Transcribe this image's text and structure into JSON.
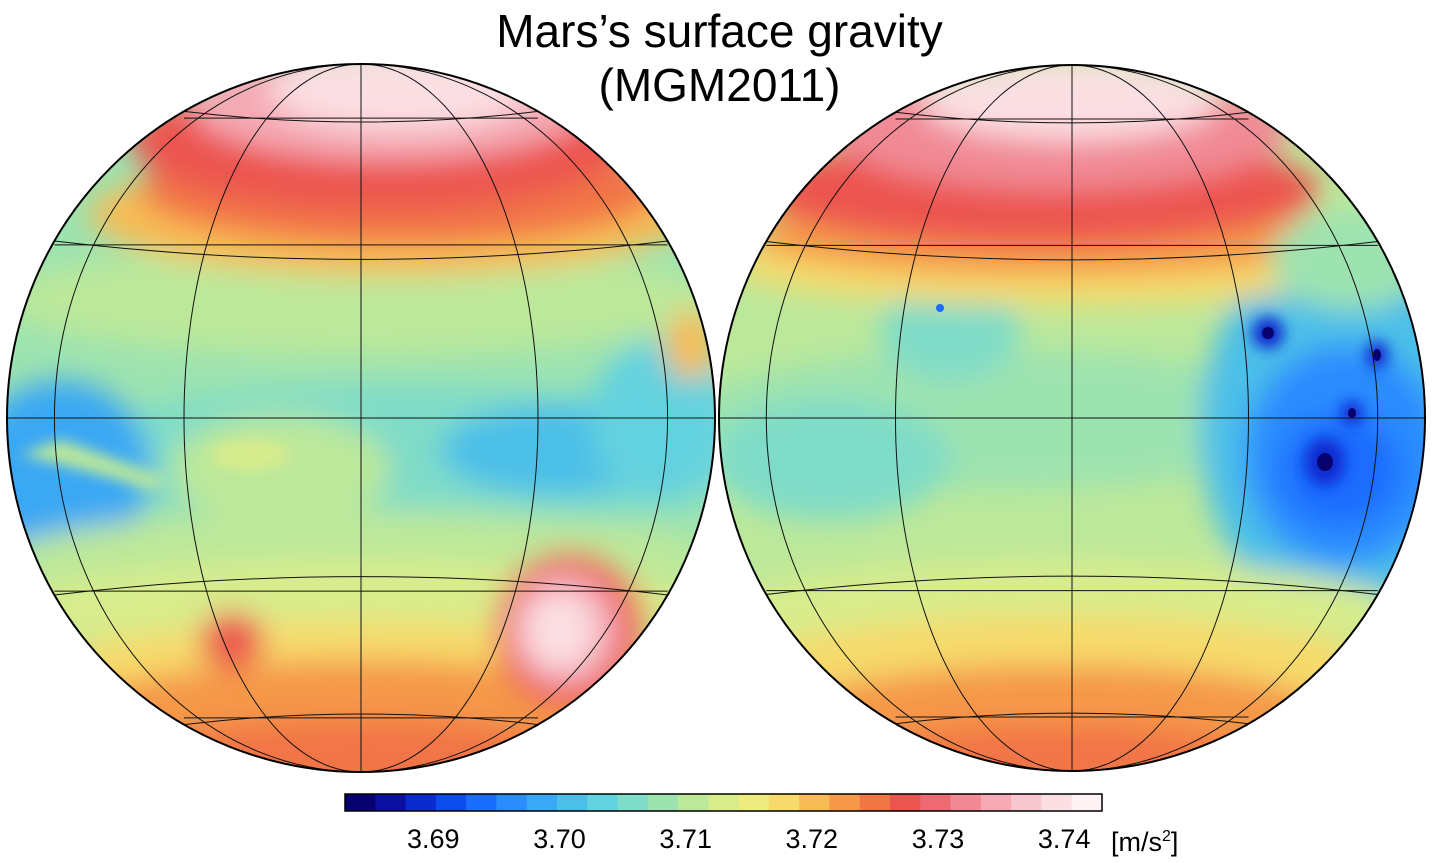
{
  "title": {
    "line1": "Mars’s surface gravity",
    "line2": "(MGM2011)"
  },
  "colorbar": {
    "ticks": [
      "3.69",
      "3.70",
      "3.71",
      "3.72",
      "3.73",
      "3.74"
    ],
    "tick_values": [
      3.69,
      3.7,
      3.71,
      3.72,
      3.73,
      3.74
    ],
    "range": [
      3.683,
      3.743
    ],
    "unit_prefix": "[m/s",
    "unit_sup": "2",
    "unit_suffix": "]",
    "colors": [
      "#08006e",
      "#0a0fa0",
      "#0b2ad0",
      "#0c4bee",
      "#1a6cff",
      "#2a8cff",
      "#3aa8f4",
      "#4cbfe8",
      "#63d2df",
      "#7fdcc8",
      "#9de3b0",
      "#bce89a",
      "#d8ec8c",
      "#ecec80",
      "#f6da6c",
      "#f7bb55",
      "#f59848",
      "#f27546",
      "#ec5450",
      "#ee6a72",
      "#f18a95",
      "#f5aab5",
      "#f8c6cf",
      "#fbdfe3",
      "#fff2f4"
    ]
  },
  "hemispheres": [
    {
      "name": "left-hemisphere"
    },
    {
      "name": "right-hemisphere"
    }
  ]
}
